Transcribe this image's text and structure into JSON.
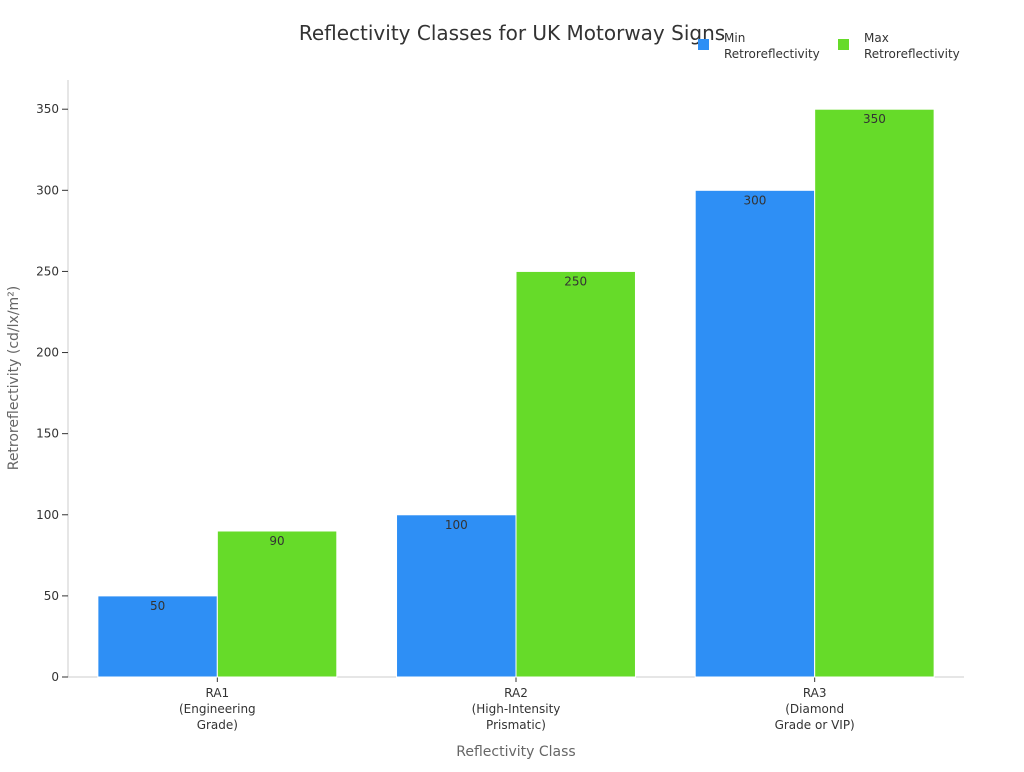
{
  "chart_data": {
    "type": "bar",
    "title": "Reflectivity Classes for UK Motorway Signs",
    "xlabel": "Reflectivity Class",
    "ylabel": "Retroreflectivity (cd/lx/m²)",
    "categories": [
      [
        "RA1",
        "(Engineering",
        "Grade)"
      ],
      [
        "RA2",
        "(High-Intensity",
        "Prismatic)"
      ],
      [
        "RA3",
        "(Diamond",
        "Grade or VIP)"
      ]
    ],
    "series": [
      {
        "name": [
          "Min",
          "Retroreflectivity"
        ],
        "values": [
          50,
          100,
          300
        ],
        "color": "#2e8ff5"
      },
      {
        "name": [
          "Max",
          "Retroreflectivity"
        ],
        "values": [
          90,
          250,
          350
        ],
        "color": "#66db29"
      }
    ],
    "ylim": [
      0,
      368
    ],
    "yticks": [
      0,
      50,
      100,
      150,
      200,
      250,
      300,
      350
    ],
    "grid": false,
    "legend_position": "top-right"
  }
}
